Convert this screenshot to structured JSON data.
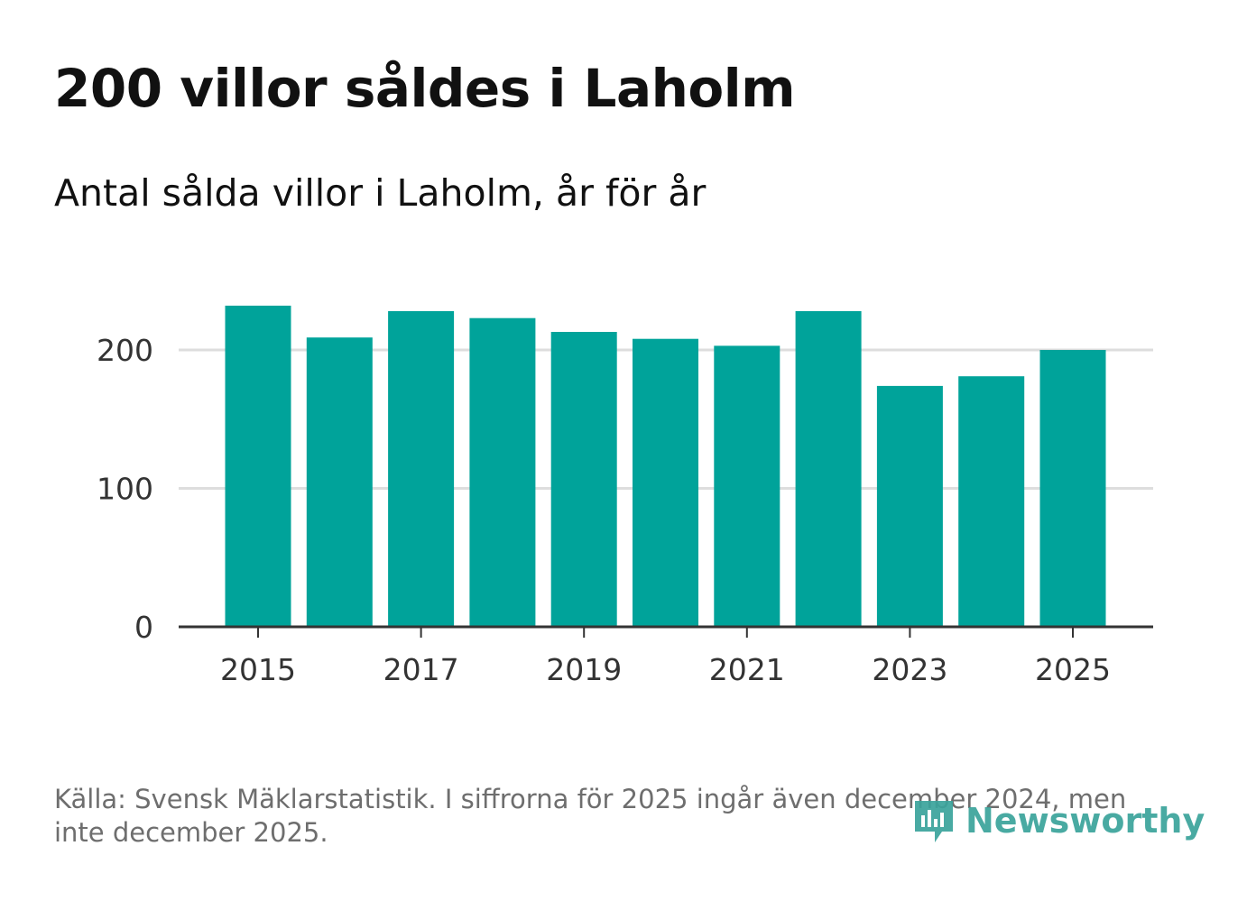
{
  "header": {
    "title": "200 villor såldes i Laholm",
    "subtitle": "Antal sålda villor i Laholm, år för år"
  },
  "footer": {
    "source": "Källa: Svensk Mäklarstatistik. I siffrorna för 2025 ingår även december 2024, men inte december 2025.",
    "logo_text": "Newsworthy"
  },
  "colors": {
    "bar": "#00a39a",
    "grid": "#dddddd",
    "axis": "#333333",
    "logo": "#3aa39b"
  },
  "chart_data": {
    "type": "bar",
    "title": "200 villor såldes i Laholm",
    "subtitle": "Antal sålda villor i Laholm, år för år",
    "xlabel": "",
    "ylabel": "",
    "categories": [
      "2015",
      "2016",
      "2017",
      "2018",
      "2019",
      "2020",
      "2021",
      "2022",
      "2023",
      "2024",
      "2025"
    ],
    "values": [
      232,
      209,
      228,
      223,
      213,
      208,
      203,
      228,
      174,
      181,
      200
    ],
    "x_tick_labels": [
      "2015",
      "2017",
      "2019",
      "2021",
      "2023",
      "2025"
    ],
    "y_ticks": [
      0,
      100,
      200
    ],
    "ylim": [
      0,
      250
    ],
    "grid": true,
    "legend": "none"
  }
}
